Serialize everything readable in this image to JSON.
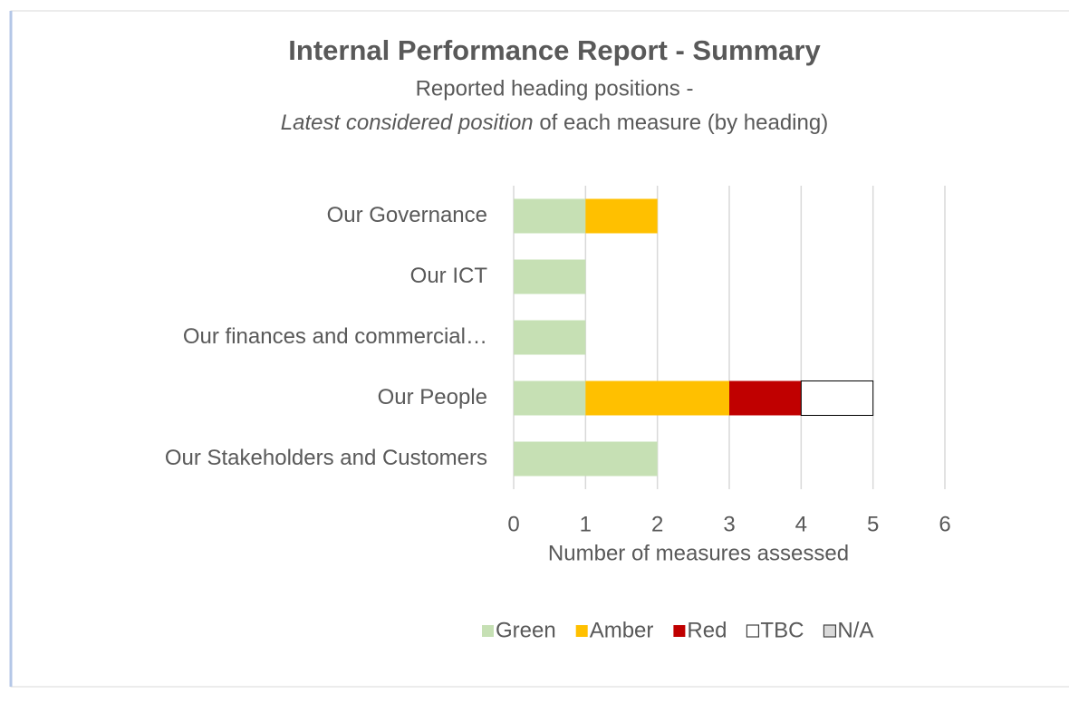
{
  "chart_data": {
    "type": "bar",
    "orientation": "horizontal",
    "stacked": true,
    "title": "Internal Performance Report - Summary",
    "subtitle": "Reported heading positions -",
    "subtitle_2": [
      "Latest considered position",
      " of each measure (by heading)"
    ],
    "categories": [
      "Our Governance",
      "Our ICT",
      "Our finances and commercial…",
      "Our People",
      "Our Stakeholders and Customers"
    ],
    "series": [
      {
        "name": "Green",
        "color": "#c6e0b4",
        "values": [
          1,
          1,
          1,
          1,
          2
        ]
      },
      {
        "name": "Amber",
        "color": "#ffc000",
        "values": [
          1,
          0,
          0,
          2,
          0
        ]
      },
      {
        "name": "Red",
        "color": "#c00000",
        "values": [
          0,
          0,
          0,
          1,
          0
        ]
      },
      {
        "name": "TBC",
        "color": "#ffffff",
        "outline": "#000000",
        "values": [
          0,
          0,
          0,
          1,
          0
        ]
      },
      {
        "name": "N/A",
        "color": "#d9d9d9",
        "outline": "#000000",
        "values": [
          0,
          0,
          0,
          0,
          0
        ]
      }
    ],
    "xlabel": "Number of measures assessed",
    "xlim": [
      0,
      6
    ],
    "xticks": [
      0,
      1,
      2,
      3,
      4,
      5,
      6
    ],
    "grid": true,
    "legend": "bottom"
  }
}
